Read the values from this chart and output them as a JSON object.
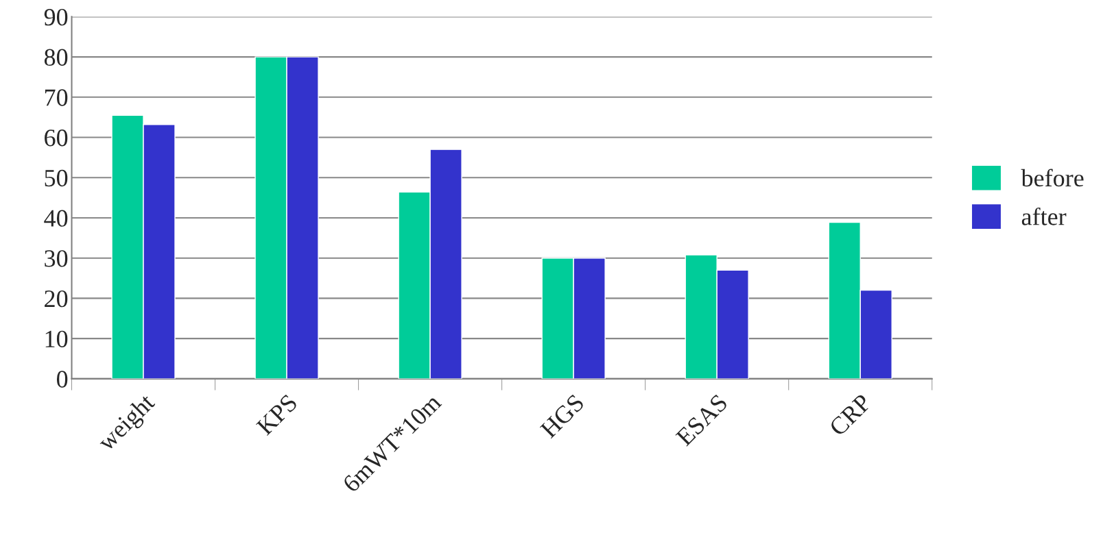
{
  "chart_data": {
    "type": "bar",
    "categories": [
      "weight",
      "KPS",
      "6mWT*10m",
      "HGS",
      "ESAS",
      "CRP"
    ],
    "series": [
      {
        "name": "before",
        "color": "#00cc99",
        "values": [
          65.5,
          80,
          46.4,
          30,
          30.8,
          38.9
        ]
      },
      {
        "name": "after",
        "color": "#3333cc",
        "values": [
          63.2,
          80,
          57,
          30,
          27,
          22
        ]
      }
    ],
    "ylim": [
      0,
      90
    ],
    "yticks": [
      0,
      10,
      20,
      30,
      40,
      50,
      60,
      70,
      80,
      90
    ],
    "grid": "y",
    "legend": "right"
  }
}
